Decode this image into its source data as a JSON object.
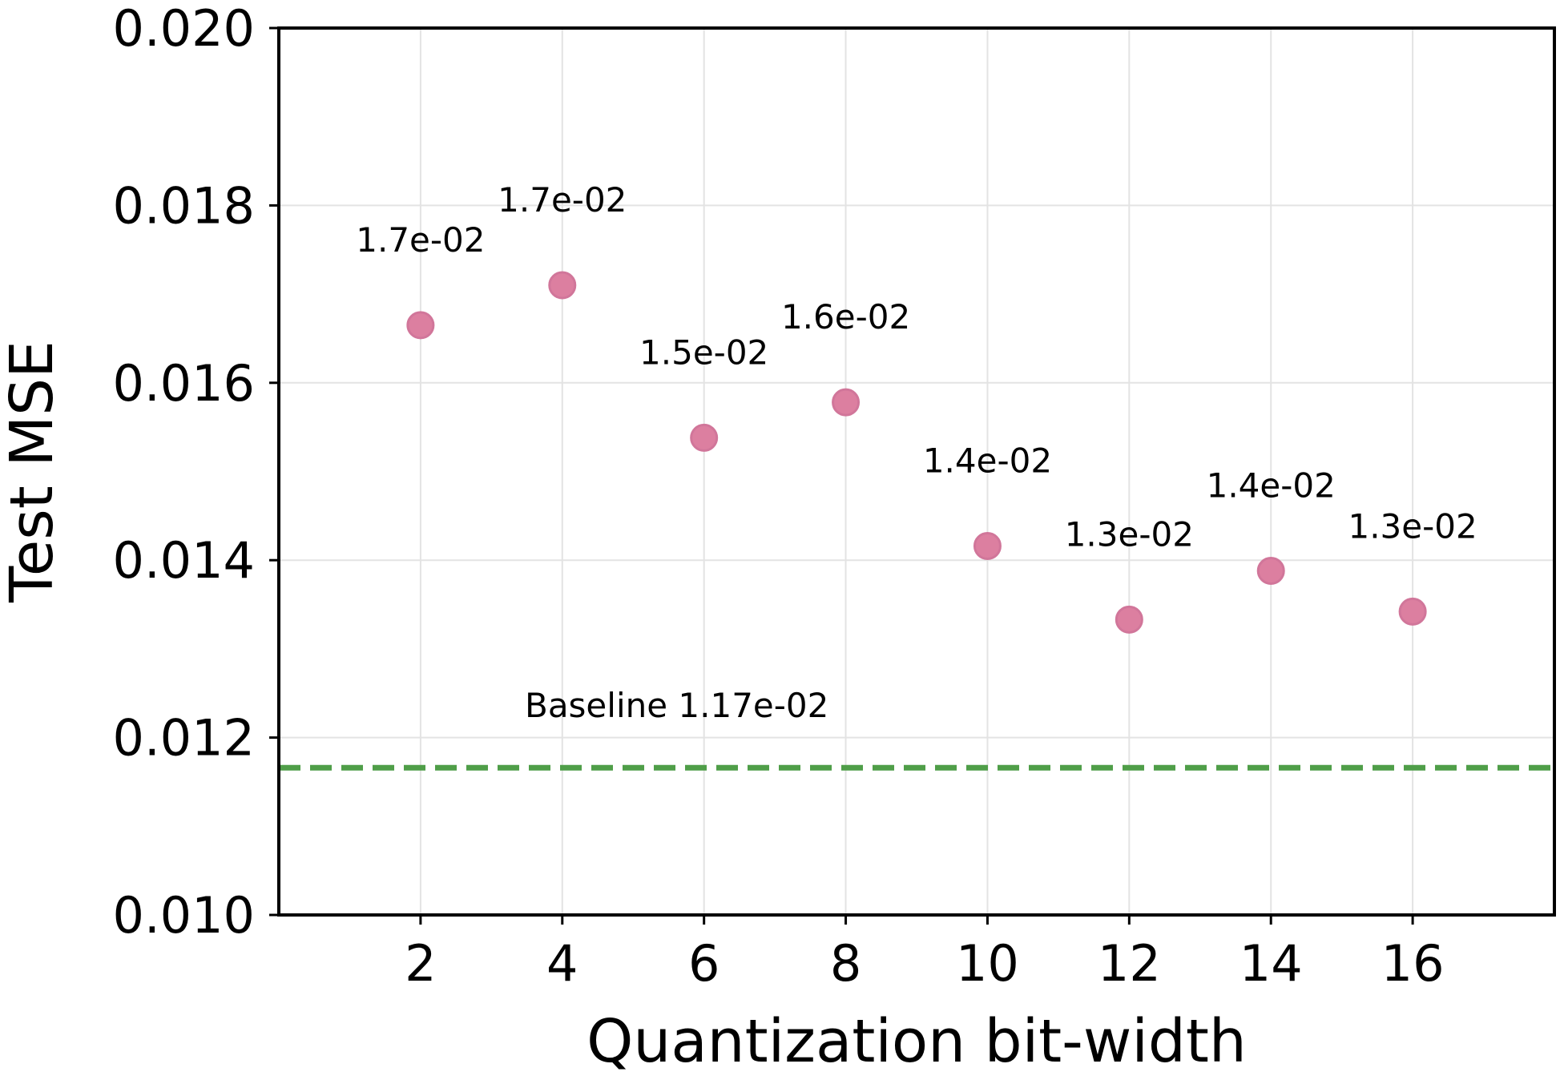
{
  "chart_data": {
    "type": "scatter",
    "title": "",
    "xlabel": "Quantization bit-width",
    "ylabel": "Test MSE",
    "x": [
      2,
      4,
      6,
      8,
      10,
      12,
      14,
      16
    ],
    "y": [
      0.01665,
      0.0171,
      0.01538,
      0.01578,
      0.01416,
      0.01333,
      0.01388,
      0.01342
    ],
    "point_labels": [
      "1.7e-02",
      "1.7e-02",
      "1.5e-02",
      "1.6e-02",
      "1.4e-02",
      "1.3e-02",
      "1.4e-02",
      "1.3e-02"
    ],
    "xlim": [
      0,
      18
    ],
    "ylim": [
      0.01,
      0.02
    ],
    "xticks": [
      2,
      4,
      6,
      8,
      10,
      12,
      14,
      16
    ],
    "xtick_labels": [
      "2",
      "4",
      "6",
      "8",
      "10",
      "12",
      "14",
      "16"
    ],
    "yticks": [
      0.01,
      0.012,
      0.014,
      0.016,
      0.018,
      0.02
    ],
    "ytick_labels": [
      "0.010",
      "0.012",
      "0.014",
      "0.016",
      "0.018",
      "0.020"
    ],
    "grid": true,
    "baseline": {
      "value": 0.01166,
      "label": "Baseline 1.17e-02",
      "style": "dashed",
      "color": "#4f9e48"
    },
    "marker_color": "#dc7fa0",
    "marker_edge_color": "#d1769a",
    "grid_color": "#e3e3e3",
    "axis_color": "#000000"
  }
}
